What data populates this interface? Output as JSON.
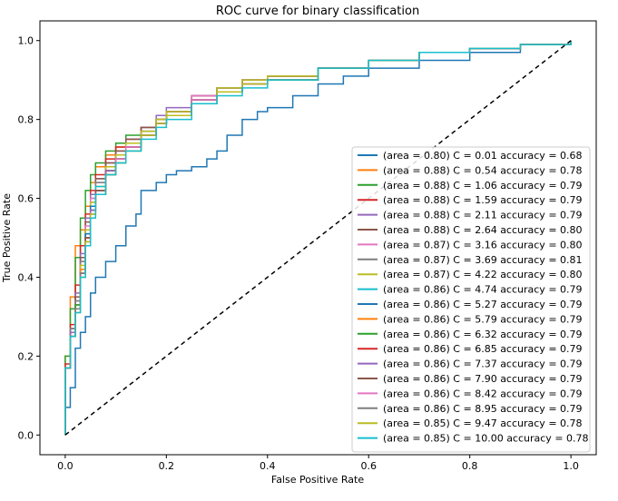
{
  "chart_data": {
    "type": "line",
    "title": "ROC curve for binary classification",
    "xlabel": "False Positive Rate",
    "ylabel": "True Positive Rate",
    "xlim": [
      -0.05,
      1.05
    ],
    "ylim": [
      -0.05,
      1.05
    ],
    "x_ticks": [
      0.0,
      0.2,
      0.4,
      0.6,
      0.8,
      1.0
    ],
    "x_tick_labels": [
      "0.0",
      "0.2",
      "0.4",
      "0.6",
      "0.8",
      "1.0"
    ],
    "y_ticks": [
      0.0,
      0.2,
      0.4,
      0.6,
      0.8,
      1.0
    ],
    "y_tick_labels": [
      "0.0",
      "0.2",
      "0.4",
      "0.6",
      "0.8",
      "1.0"
    ],
    "grid": false,
    "legend_position": "lower-right",
    "diagonal": {
      "x": [
        0,
        1
      ],
      "y": [
        0,
        1
      ],
      "color": "#000000",
      "style": "dashed"
    },
    "series": [
      {
        "name": "(area = 0.80) C = 0.01 accuracy = 0.68",
        "color": "#1f77b4",
        "x": [
          0.0,
          0.0,
          0.01,
          0.01,
          0.02,
          0.02,
          0.03,
          0.04,
          0.05,
          0.06,
          0.08,
          0.1,
          0.12,
          0.14,
          0.15,
          0.18,
          0.2,
          0.22,
          0.25,
          0.28,
          0.3,
          0.32,
          0.35,
          0.38,
          0.4,
          0.45,
          0.5,
          0.55,
          0.6,
          0.7,
          0.8,
          0.9,
          1.0
        ],
        "y": [
          0.0,
          0.07,
          0.08,
          0.12,
          0.18,
          0.22,
          0.26,
          0.3,
          0.36,
          0.4,
          0.44,
          0.48,
          0.53,
          0.56,
          0.62,
          0.64,
          0.66,
          0.67,
          0.68,
          0.7,
          0.72,
          0.76,
          0.8,
          0.82,
          0.83,
          0.86,
          0.89,
          0.91,
          0.93,
          0.95,
          0.97,
          0.99,
          1.0
        ]
      },
      {
        "name": "(area = 0.88) C = 0.54 accuracy = 0.78",
        "color": "#ff7f0e",
        "x": [
          0.0,
          0.0,
          0.01,
          0.01,
          0.02,
          0.02,
          0.03,
          0.04,
          0.05,
          0.06,
          0.08,
          0.1,
          0.12,
          0.15,
          0.18,
          0.2,
          0.25,
          0.3,
          0.35,
          0.4,
          0.5,
          0.6,
          0.7,
          0.8,
          0.9,
          1.0
        ],
        "y": [
          0.0,
          0.2,
          0.3,
          0.35,
          0.42,
          0.48,
          0.52,
          0.58,
          0.64,
          0.68,
          0.71,
          0.73,
          0.75,
          0.78,
          0.8,
          0.82,
          0.85,
          0.87,
          0.89,
          0.91,
          0.93,
          0.95,
          0.97,
          0.98,
          0.99,
          1.0
        ]
      },
      {
        "name": "(area = 0.88) C = 1.06 accuracy = 0.79",
        "color": "#2ca02c",
        "x": [
          0.0,
          0.0,
          0.01,
          0.02,
          0.03,
          0.04,
          0.05,
          0.06,
          0.08,
          0.1,
          0.12,
          0.15,
          0.18,
          0.2,
          0.25,
          0.3,
          0.35,
          0.4,
          0.5,
          0.6,
          0.7,
          0.8,
          0.9,
          1.0
        ],
        "y": [
          0.0,
          0.2,
          0.32,
          0.45,
          0.55,
          0.62,
          0.66,
          0.69,
          0.72,
          0.74,
          0.76,
          0.78,
          0.8,
          0.82,
          0.85,
          0.88,
          0.89,
          0.91,
          0.93,
          0.95,
          0.97,
          0.98,
          0.99,
          1.0
        ]
      },
      {
        "name": "(area = 0.88) C = 1.59 accuracy = 0.79",
        "color": "#d62728",
        "x": [
          0.0,
          0.0,
          0.01,
          0.02,
          0.03,
          0.04,
          0.05,
          0.06,
          0.08,
          0.1,
          0.12,
          0.15,
          0.18,
          0.2,
          0.25,
          0.3,
          0.35,
          0.4,
          0.5,
          0.6,
          0.7,
          0.8,
          0.9,
          1.0
        ],
        "y": [
          0.0,
          0.18,
          0.28,
          0.38,
          0.48,
          0.56,
          0.62,
          0.66,
          0.7,
          0.73,
          0.75,
          0.78,
          0.8,
          0.82,
          0.86,
          0.88,
          0.9,
          0.91,
          0.93,
          0.95,
          0.97,
          0.98,
          0.99,
          1.0
        ]
      },
      {
        "name": "(area = 0.88) C = 2.11 accuracy = 0.79",
        "color": "#9467bd",
        "x": [
          0.0,
          0.0,
          0.01,
          0.02,
          0.03,
          0.04,
          0.05,
          0.06,
          0.08,
          0.1,
          0.12,
          0.15,
          0.18,
          0.2,
          0.25,
          0.3,
          0.35,
          0.4,
          0.5,
          0.6,
          0.7,
          0.8,
          0.9,
          1.0
        ],
        "y": [
          0.0,
          0.17,
          0.27,
          0.36,
          0.46,
          0.55,
          0.61,
          0.65,
          0.69,
          0.72,
          0.75,
          0.78,
          0.81,
          0.83,
          0.86,
          0.88,
          0.9,
          0.91,
          0.93,
          0.95,
          0.97,
          0.98,
          0.99,
          1.0
        ]
      },
      {
        "name": "(area = 0.88) C = 2.64 accuracy = 0.80",
        "color": "#8c564b",
        "x": [
          0.0,
          0.0,
          0.01,
          0.02,
          0.03,
          0.04,
          0.05,
          0.06,
          0.08,
          0.1,
          0.12,
          0.15,
          0.18,
          0.2,
          0.25,
          0.3,
          0.35,
          0.4,
          0.5,
          0.6,
          0.7,
          0.8,
          0.9,
          1.0
        ],
        "y": [
          0.0,
          0.17,
          0.27,
          0.35,
          0.45,
          0.54,
          0.6,
          0.65,
          0.69,
          0.72,
          0.75,
          0.78,
          0.8,
          0.82,
          0.86,
          0.88,
          0.9,
          0.91,
          0.93,
          0.95,
          0.97,
          0.98,
          0.99,
          1.0
        ]
      },
      {
        "name": "(area = 0.87) C = 3.16 accuracy = 0.80",
        "color": "#e377c2",
        "x": [
          0.0,
          0.0,
          0.01,
          0.02,
          0.03,
          0.04,
          0.05,
          0.06,
          0.08,
          0.1,
          0.12,
          0.15,
          0.18,
          0.2,
          0.25,
          0.3,
          0.35,
          0.4,
          0.5,
          0.6,
          0.7,
          0.8,
          0.9,
          1.0
        ],
        "y": [
          0.0,
          0.17,
          0.27,
          0.34,
          0.44,
          0.53,
          0.6,
          0.64,
          0.68,
          0.71,
          0.74,
          0.77,
          0.8,
          0.82,
          0.86,
          0.88,
          0.9,
          0.91,
          0.93,
          0.95,
          0.97,
          0.98,
          0.99,
          1.0
        ]
      },
      {
        "name": "(area = 0.87) C = 3.69 accuracy = 0.81",
        "color": "#7f7f7f",
        "x": [
          0.0,
          0.0,
          0.01,
          0.02,
          0.03,
          0.04,
          0.05,
          0.06,
          0.08,
          0.1,
          0.12,
          0.15,
          0.18,
          0.2,
          0.25,
          0.3,
          0.35,
          0.4,
          0.5,
          0.6,
          0.7,
          0.8,
          0.9,
          1.0
        ],
        "y": [
          0.0,
          0.17,
          0.27,
          0.34,
          0.44,
          0.52,
          0.59,
          0.64,
          0.68,
          0.71,
          0.74,
          0.77,
          0.8,
          0.82,
          0.85,
          0.88,
          0.9,
          0.91,
          0.93,
          0.95,
          0.97,
          0.98,
          0.99,
          1.0
        ]
      },
      {
        "name": "(area = 0.87) C = 4.22 accuracy = 0.80",
        "color": "#bcbd22",
        "x": [
          0.0,
          0.0,
          0.01,
          0.02,
          0.03,
          0.04,
          0.05,
          0.06,
          0.08,
          0.1,
          0.12,
          0.15,
          0.18,
          0.2,
          0.25,
          0.3,
          0.35,
          0.4,
          0.5,
          0.6,
          0.7,
          0.8,
          0.9,
          1.0
        ],
        "y": [
          0.0,
          0.17,
          0.26,
          0.33,
          0.43,
          0.52,
          0.59,
          0.63,
          0.68,
          0.71,
          0.74,
          0.77,
          0.8,
          0.82,
          0.85,
          0.88,
          0.9,
          0.91,
          0.93,
          0.95,
          0.97,
          0.98,
          0.99,
          1.0
        ]
      },
      {
        "name": "(area = 0.86) C = 4.74 accuracy = 0.79",
        "color": "#17becf",
        "x": [
          0.0,
          0.0,
          0.01,
          0.02,
          0.03,
          0.04,
          0.05,
          0.06,
          0.08,
          0.1,
          0.12,
          0.15,
          0.18,
          0.2,
          0.25,
          0.3,
          0.35,
          0.4,
          0.5,
          0.6,
          0.7,
          0.8,
          0.9,
          1.0
        ],
        "y": [
          0.0,
          0.17,
          0.26,
          0.33,
          0.42,
          0.51,
          0.58,
          0.63,
          0.67,
          0.7,
          0.73,
          0.76,
          0.79,
          0.81,
          0.85,
          0.87,
          0.89,
          0.9,
          0.93,
          0.95,
          0.97,
          0.98,
          0.99,
          1.0
        ]
      },
      {
        "name": "(area = 0.86) C = 5.27 accuracy = 0.79",
        "color": "#1f77b4",
        "x": [
          0.0,
          0.0,
          0.01,
          0.02,
          0.03,
          0.04,
          0.05,
          0.06,
          0.08,
          0.1,
          0.12,
          0.15,
          0.18,
          0.2,
          0.25,
          0.3,
          0.35,
          0.4,
          0.5,
          0.6,
          0.7,
          0.8,
          0.9,
          1.0
        ],
        "y": [
          0.0,
          0.17,
          0.26,
          0.33,
          0.42,
          0.51,
          0.58,
          0.62,
          0.67,
          0.7,
          0.73,
          0.76,
          0.79,
          0.81,
          0.85,
          0.87,
          0.89,
          0.9,
          0.93,
          0.95,
          0.97,
          0.98,
          0.99,
          1.0
        ]
      },
      {
        "name": "(area = 0.86) C = 5.79 accuracy = 0.79",
        "color": "#ff7f0e",
        "x": [
          0.0,
          0.0,
          0.01,
          0.02,
          0.03,
          0.04,
          0.05,
          0.06,
          0.08,
          0.1,
          0.12,
          0.15,
          0.18,
          0.2,
          0.25,
          0.3,
          0.35,
          0.4,
          0.5,
          0.6,
          0.7,
          0.8,
          0.9,
          1.0
        ],
        "y": [
          0.0,
          0.17,
          0.26,
          0.33,
          0.42,
          0.5,
          0.57,
          0.62,
          0.67,
          0.7,
          0.73,
          0.76,
          0.79,
          0.81,
          0.85,
          0.87,
          0.89,
          0.9,
          0.93,
          0.95,
          0.97,
          0.98,
          0.99,
          1.0
        ]
      },
      {
        "name": "(area = 0.86) C = 6.32 accuracy = 0.79",
        "color": "#2ca02c",
        "x": [
          0.0,
          0.0,
          0.01,
          0.02,
          0.03,
          0.04,
          0.05,
          0.06,
          0.08,
          0.1,
          0.12,
          0.15,
          0.18,
          0.2,
          0.25,
          0.3,
          0.35,
          0.4,
          0.5,
          0.6,
          0.7,
          0.8,
          0.9,
          1.0
        ],
        "y": [
          0.0,
          0.17,
          0.26,
          0.33,
          0.41,
          0.5,
          0.57,
          0.62,
          0.67,
          0.7,
          0.73,
          0.76,
          0.79,
          0.81,
          0.85,
          0.87,
          0.89,
          0.9,
          0.93,
          0.95,
          0.97,
          0.98,
          0.99,
          1.0
        ]
      },
      {
        "name": "(area = 0.86) C = 6.85 accuracy = 0.79",
        "color": "#d62728",
        "x": [
          0.0,
          0.0,
          0.01,
          0.02,
          0.03,
          0.04,
          0.05,
          0.06,
          0.08,
          0.1,
          0.12,
          0.15,
          0.18,
          0.2,
          0.25,
          0.3,
          0.35,
          0.4,
          0.5,
          0.6,
          0.7,
          0.8,
          0.9,
          1.0
        ],
        "y": [
          0.0,
          0.17,
          0.26,
          0.32,
          0.41,
          0.5,
          0.57,
          0.62,
          0.67,
          0.7,
          0.73,
          0.76,
          0.79,
          0.81,
          0.85,
          0.87,
          0.89,
          0.9,
          0.93,
          0.95,
          0.97,
          0.98,
          0.99,
          1.0
        ]
      },
      {
        "name": "(area = 0.86) C = 7.37 accuracy = 0.79",
        "color": "#9467bd",
        "x": [
          0.0,
          0.0,
          0.01,
          0.02,
          0.03,
          0.04,
          0.05,
          0.06,
          0.08,
          0.1,
          0.12,
          0.15,
          0.18,
          0.2,
          0.25,
          0.3,
          0.35,
          0.4,
          0.5,
          0.6,
          0.7,
          0.8,
          0.9,
          1.0
        ],
        "y": [
          0.0,
          0.17,
          0.26,
          0.32,
          0.41,
          0.5,
          0.57,
          0.62,
          0.67,
          0.7,
          0.73,
          0.76,
          0.79,
          0.81,
          0.85,
          0.87,
          0.89,
          0.9,
          0.93,
          0.95,
          0.97,
          0.98,
          0.99,
          1.0
        ]
      },
      {
        "name": "(area = 0.86) C = 7.90 accuracy = 0.79",
        "color": "#8c564b",
        "x": [
          0.0,
          0.0,
          0.01,
          0.02,
          0.03,
          0.04,
          0.05,
          0.06,
          0.08,
          0.1,
          0.12,
          0.15,
          0.18,
          0.2,
          0.25,
          0.3,
          0.35,
          0.4,
          0.5,
          0.6,
          0.7,
          0.8,
          0.9,
          1.0
        ],
        "y": [
          0.0,
          0.17,
          0.25,
          0.32,
          0.41,
          0.5,
          0.56,
          0.62,
          0.66,
          0.7,
          0.73,
          0.76,
          0.79,
          0.81,
          0.85,
          0.87,
          0.89,
          0.9,
          0.93,
          0.95,
          0.97,
          0.98,
          0.99,
          1.0
        ]
      },
      {
        "name": "(area = 0.86) C = 8.42 accuracy = 0.79",
        "color": "#e377c2",
        "x": [
          0.0,
          0.0,
          0.01,
          0.02,
          0.03,
          0.04,
          0.05,
          0.06,
          0.08,
          0.1,
          0.12,
          0.15,
          0.18,
          0.2,
          0.25,
          0.3,
          0.35,
          0.4,
          0.5,
          0.6,
          0.7,
          0.8,
          0.9,
          1.0
        ],
        "y": [
          0.0,
          0.17,
          0.25,
          0.32,
          0.41,
          0.49,
          0.56,
          0.61,
          0.66,
          0.7,
          0.73,
          0.76,
          0.79,
          0.81,
          0.85,
          0.87,
          0.89,
          0.9,
          0.93,
          0.95,
          0.97,
          0.98,
          0.99,
          1.0
        ]
      },
      {
        "name": "(area = 0.86) C = 8.95 accuracy = 0.79",
        "color": "#7f7f7f",
        "x": [
          0.0,
          0.0,
          0.01,
          0.02,
          0.03,
          0.04,
          0.05,
          0.06,
          0.08,
          0.1,
          0.12,
          0.15,
          0.18,
          0.2,
          0.25,
          0.3,
          0.35,
          0.4,
          0.5,
          0.6,
          0.7,
          0.8,
          0.9,
          1.0
        ],
        "y": [
          0.0,
          0.17,
          0.25,
          0.32,
          0.41,
          0.49,
          0.56,
          0.61,
          0.66,
          0.69,
          0.72,
          0.76,
          0.79,
          0.81,
          0.84,
          0.87,
          0.89,
          0.9,
          0.93,
          0.95,
          0.97,
          0.98,
          0.99,
          1.0
        ]
      },
      {
        "name": "(area = 0.85) C = 9.47 accuracy = 0.78",
        "color": "#bcbd22",
        "x": [
          0.0,
          0.0,
          0.01,
          0.02,
          0.03,
          0.04,
          0.05,
          0.06,
          0.08,
          0.1,
          0.12,
          0.15,
          0.18,
          0.2,
          0.25,
          0.3,
          0.35,
          0.4,
          0.5,
          0.6,
          0.7,
          0.8,
          0.9,
          1.0
        ],
        "y": [
          0.0,
          0.17,
          0.25,
          0.31,
          0.4,
          0.49,
          0.56,
          0.61,
          0.66,
          0.69,
          0.72,
          0.76,
          0.79,
          0.81,
          0.84,
          0.87,
          0.89,
          0.9,
          0.93,
          0.95,
          0.97,
          0.98,
          0.99,
          1.0
        ]
      },
      {
        "name": "(area = 0.85) C = 10.00 accuracy = 0.78",
        "color": "#17becf",
        "x": [
          0.0,
          0.0,
          0.01,
          0.02,
          0.03,
          0.04,
          0.05,
          0.06,
          0.08,
          0.1,
          0.12,
          0.15,
          0.18,
          0.2,
          0.25,
          0.3,
          0.35,
          0.4,
          0.5,
          0.6,
          0.7,
          0.8,
          0.9,
          1.0
        ],
        "y": [
          0.0,
          0.17,
          0.25,
          0.31,
          0.4,
          0.48,
          0.55,
          0.61,
          0.66,
          0.69,
          0.72,
          0.75,
          0.78,
          0.8,
          0.84,
          0.86,
          0.88,
          0.9,
          0.93,
          0.95,
          0.97,
          0.98,
          0.99,
          1.0
        ]
      }
    ]
  }
}
